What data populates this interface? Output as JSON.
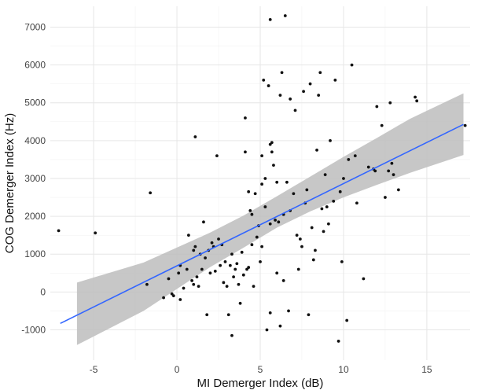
{
  "chart_data": {
    "type": "scatter",
    "title": "",
    "xlabel": "MI Demerger Index (dB)",
    "ylabel": "COG Demerger Index (Hz)",
    "xlim": [
      -7.6,
      17.6
    ],
    "ylim": [
      -1800,
      7550
    ],
    "xticks": [
      -5,
      0,
      5,
      10,
      15
    ],
    "yticks": [
      -1000,
      0,
      1000,
      2000,
      3000,
      4000,
      5000,
      6000,
      7000
    ],
    "grid": true,
    "legend": "none",
    "colors": {
      "points": "#111111",
      "fit_line": "#3366ff",
      "confidence_band": "#bdbdbd",
      "grid": "#e6e6e6",
      "background": "#ffffff"
    },
    "points": [
      [
        -7.1,
        1620
      ],
      [
        -4.9,
        1560
      ],
      [
        -1.6,
        2620
      ],
      [
        -1.8,
        200
      ],
      [
        -0.8,
        -150
      ],
      [
        -0.5,
        350
      ],
      [
        -0.3,
        -50
      ],
      [
        -0.2,
        -100
      ],
      [
        0.1,
        500
      ],
      [
        0.2,
        700
      ],
      [
        0.2,
        -200
      ],
      [
        0.4,
        100
      ],
      [
        0.6,
        600
      ],
      [
        0.7,
        1500
      ],
      [
        0.9,
        300
      ],
      [
        1.0,
        200
      ],
      [
        1.0,
        1100
      ],
      [
        1.1,
        1200
      ],
      [
        1.1,
        4100
      ],
      [
        1.2,
        400
      ],
      [
        1.3,
        150
      ],
      [
        1.4,
        1000
      ],
      [
        1.5,
        600
      ],
      [
        1.6,
        1850
      ],
      [
        1.7,
        900
      ],
      [
        1.8,
        -600
      ],
      [
        1.9,
        1100
      ],
      [
        2.0,
        500
      ],
      [
        2.1,
        1300
      ],
      [
        2.2,
        1200
      ],
      [
        2.3,
        550
      ],
      [
        2.4,
        3600
      ],
      [
        2.5,
        1400
      ],
      [
        2.6,
        700
      ],
      [
        2.7,
        1250
      ],
      [
        2.8,
        250
      ],
      [
        2.9,
        800
      ],
      [
        3.0,
        150
      ],
      [
        3.1,
        -600
      ],
      [
        3.2,
        700
      ],
      [
        3.3,
        1000
      ],
      [
        3.3,
        -1150
      ],
      [
        3.4,
        400
      ],
      [
        3.5,
        600
      ],
      [
        3.6,
        750
      ],
      [
        3.7,
        200
      ],
      [
        3.8,
        -300
      ],
      [
        3.9,
        1050
      ],
      [
        4.0,
        450
      ],
      [
        4.1,
        4600
      ],
      [
        4.1,
        3700
      ],
      [
        4.2,
        600
      ],
      [
        4.3,
        2650
      ],
      [
        4.3,
        650
      ],
      [
        4.4,
        2150
      ],
      [
        4.5,
        1250
      ],
      [
        4.5,
        2050
      ],
      [
        4.6,
        150
      ],
      [
        4.7,
        2600
      ],
      [
        4.8,
        1450
      ],
      [
        4.9,
        1750
      ],
      [
        5.0,
        800
      ],
      [
        5.1,
        3600
      ],
      [
        5.1,
        2850
      ],
      [
        5.1,
        1200
      ],
      [
        5.2,
        5600
      ],
      [
        5.3,
        3000
      ],
      [
        5.3,
        2250
      ],
      [
        5.4,
        -1000
      ],
      [
        5.5,
        5450
      ],
      [
        5.6,
        1800
      ],
      [
        5.6,
        -550
      ],
      [
        5.6,
        3900
      ],
      [
        5.6,
        7200
      ],
      [
        5.7,
        3950
      ],
      [
        5.7,
        3700
      ],
      [
        5.8,
        3350
      ],
      [
        5.9,
        1900
      ],
      [
        6.0,
        500
      ],
      [
        6.0,
        2900
      ],
      [
        6.1,
        1850
      ],
      [
        6.2,
        5200
      ],
      [
        6.2,
        -900
      ],
      [
        6.3,
        5800
      ],
      [
        6.4,
        2050
      ],
      [
        6.4,
        300
      ],
      [
        6.5,
        7300
      ],
      [
        6.6,
        2900
      ],
      [
        6.7,
        -500
      ],
      [
        6.8,
        2150
      ],
      [
        6.8,
        5100
      ],
      [
        7.0,
        2600
      ],
      [
        7.1,
        4800
      ],
      [
        7.2,
        1500
      ],
      [
        7.3,
        600
      ],
      [
        7.4,
        1400
      ],
      [
        7.5,
        1200
      ],
      [
        7.6,
        5300
      ],
      [
        7.7,
        2350
      ],
      [
        7.8,
        2700
      ],
      [
        7.9,
        -600
      ],
      [
        8.0,
        5500
      ],
      [
        8.1,
        1700
      ],
      [
        8.2,
        850
      ],
      [
        8.3,
        1100
      ],
      [
        8.4,
        3750
      ],
      [
        8.5,
        5200
      ],
      [
        8.6,
        5800
      ],
      [
        8.7,
        2200
      ],
      [
        8.8,
        1600
      ],
      [
        8.9,
        3100
      ],
      [
        9.0,
        2250
      ],
      [
        9.1,
        1800
      ],
      [
        9.2,
        4000
      ],
      [
        9.4,
        2400
      ],
      [
        9.5,
        5600
      ],
      [
        9.7,
        -1300
      ],
      [
        9.8,
        2650
      ],
      [
        9.9,
        800
      ],
      [
        10.0,
        3000
      ],
      [
        10.2,
        -750
      ],
      [
        10.3,
        3500
      ],
      [
        10.5,
        6000
      ],
      [
        10.7,
        3600
      ],
      [
        10.8,
        2350
      ],
      [
        11.2,
        350
      ],
      [
        11.5,
        3300
      ],
      [
        11.8,
        3250
      ],
      [
        11.9,
        3200
      ],
      [
        12.0,
        4900
      ],
      [
        12.3,
        4400
      ],
      [
        12.5,
        2500
      ],
      [
        12.7,
        3200
      ],
      [
        12.8,
        5000
      ],
      [
        12.9,
        3400
      ],
      [
        13.0,
        3100
      ],
      [
        13.3,
        2700
      ],
      [
        14.3,
        5150
      ],
      [
        14.4,
        5050
      ],
      [
        17.3,
        4400
      ]
    ],
    "fit": {
      "x": [
        -7.0,
        17.2
      ],
      "y": [
        -830,
        4430
      ]
    },
    "confidence_band": {
      "x": [
        -6.0,
        -2.0,
        2.0,
        4.0,
        6.0,
        8.0,
        10.0,
        12.0,
        14.0,
        17.2
      ],
      "lower": [
        -1400,
        -500,
        660,
        1170,
        1700,
        2130,
        2500,
        2830,
        3150,
        3620
      ],
      "upper": [
        250,
        780,
        1570,
        2020,
        2530,
        3050,
        3570,
        4070,
        4580,
        5250
      ]
    }
  }
}
